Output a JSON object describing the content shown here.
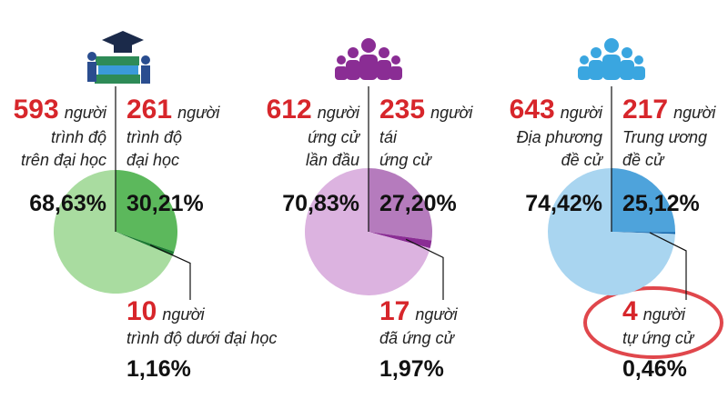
{
  "chart_data": [
    {
      "type": "pie",
      "unit": "người",
      "counts": [
        593,
        261,
        10
      ],
      "categories": [
        [
          "trình độ",
          "trên đại học"
        ],
        [
          "trình độ",
          "đại học"
        ],
        [
          "trình độ dưới đại học"
        ]
      ],
      "values": [
        68.63,
        30.21,
        1.16
      ],
      "value_labels": [
        "68,63%",
        "30,21%",
        "1,16%"
      ],
      "colors": [
        "#a9dca0",
        "#5cb85c",
        "#1e7b34"
      ]
    },
    {
      "type": "pie",
      "unit": "người",
      "counts": [
        612,
        235,
        17
      ],
      "categories": [
        [
          "ứng cử",
          "lần đầu"
        ],
        [
          "tái",
          "ứng cử"
        ],
        [
          "đã ứng cử"
        ]
      ],
      "values": [
        70.83,
        27.2,
        1.97
      ],
      "value_labels": [
        "70,83%",
        "27,20%",
        "1,97%"
      ],
      "colors": [
        "#dcb3e0",
        "#b57bbd",
        "#8a2d94"
      ]
    },
    {
      "type": "pie",
      "unit": "người",
      "counts": [
        643,
        217,
        4
      ],
      "categories": [
        [
          "Địa phương",
          "đề cử"
        ],
        [
          "Trung ương",
          "đề cử"
        ],
        [
          "tự ứng cử"
        ]
      ],
      "values": [
        74.42,
        25.12,
        0.46
      ],
      "value_labels": [
        "74,42%",
        "25,12%",
        "0,46%"
      ],
      "colors": [
        "#a9d5f0",
        "#4ea3db",
        "#1668ad"
      ]
    }
  ]
}
